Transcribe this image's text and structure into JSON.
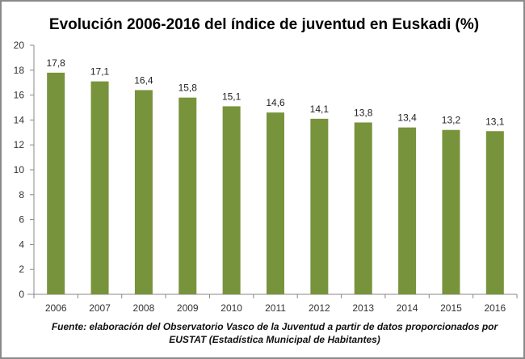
{
  "chart_data": {
    "type": "bar",
    "title": "Evolución 2006-2016 del índice de juventud en Euskadi (%)",
    "categories": [
      "2006",
      "2007",
      "2008",
      "2009",
      "2010",
      "2011",
      "2012",
      "2013",
      "2014",
      "2015",
      "2016"
    ],
    "values": [
      17.8,
      17.1,
      16.4,
      15.8,
      15.1,
      14.6,
      14.1,
      13.8,
      13.4,
      13.2,
      13.1
    ],
    "data_labels": [
      "17,8",
      "17,1",
      "16,4",
      "15,8",
      "15,1",
      "14,6",
      "14,1",
      "13,8",
      "13,4",
      "13,2",
      "13,1"
    ],
    "xlabel": "",
    "ylabel": "",
    "ylim": [
      0,
      20
    ],
    "yticks": [
      "0",
      "2",
      "4",
      "6",
      "8",
      "10",
      "12",
      "14",
      "16",
      "18",
      "20"
    ],
    "grid": false,
    "legend": "none",
    "bar_color": "#77933c",
    "source_line1": "Fuente: elaboración del Observatorio Vasco de la Juventud a partir de datos proporcionados por",
    "source_line2": "EUSTAT (Estadística Municipal de Habitantes)"
  }
}
